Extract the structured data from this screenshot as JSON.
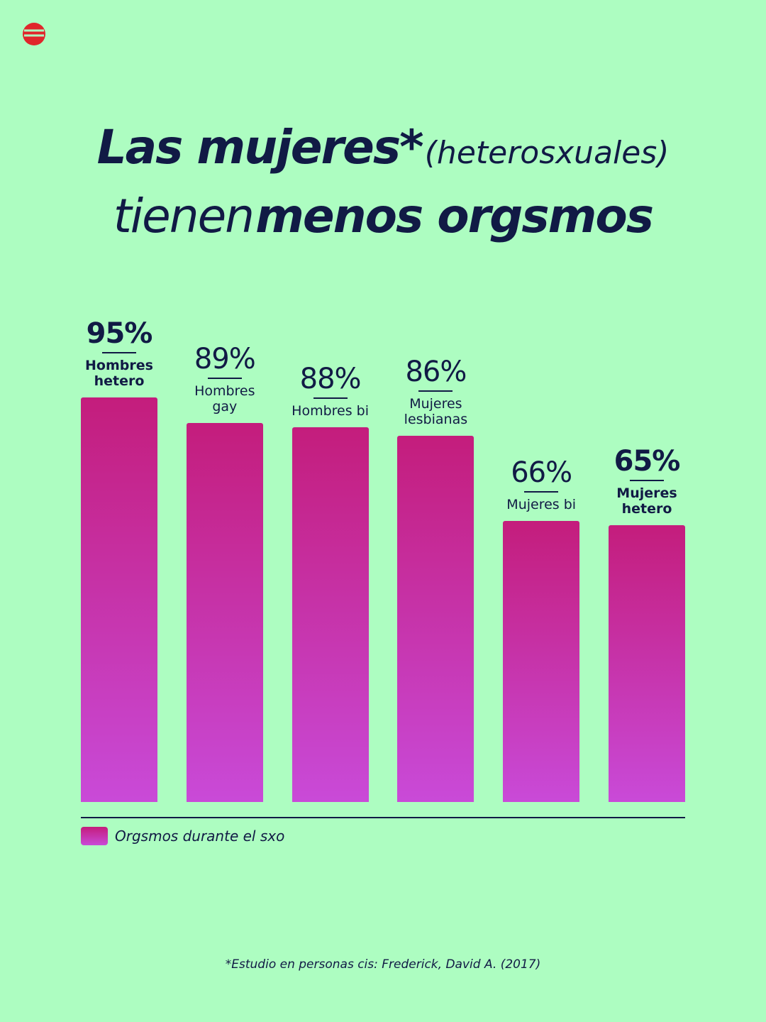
{
  "chart_data": {
    "type": "bar",
    "title": [
      "Las mujeres*",
      "(heterosxuales)",
      "tienen",
      "menos orgsmos"
    ],
    "categories": [
      "Hombres hetero",
      "Hombres gay",
      "Hombres bi",
      "Mujeres lesbianas",
      "Mujeres bi",
      "Mujeres hetero"
    ],
    "series": [
      {
        "name": "Orgsmos durante el sxo",
        "color": "#c41d7c",
        "values": [
          95,
          89,
          88,
          86,
          66,
          65
        ],
        "value_labels": [
          "95%",
          "89%",
          "88%",
          "86%",
          "66%",
          "65%"
        ]
      }
    ],
    "footnote": "*Estudio en personas cis: Frederick, David A. (2017)"
  }
}
